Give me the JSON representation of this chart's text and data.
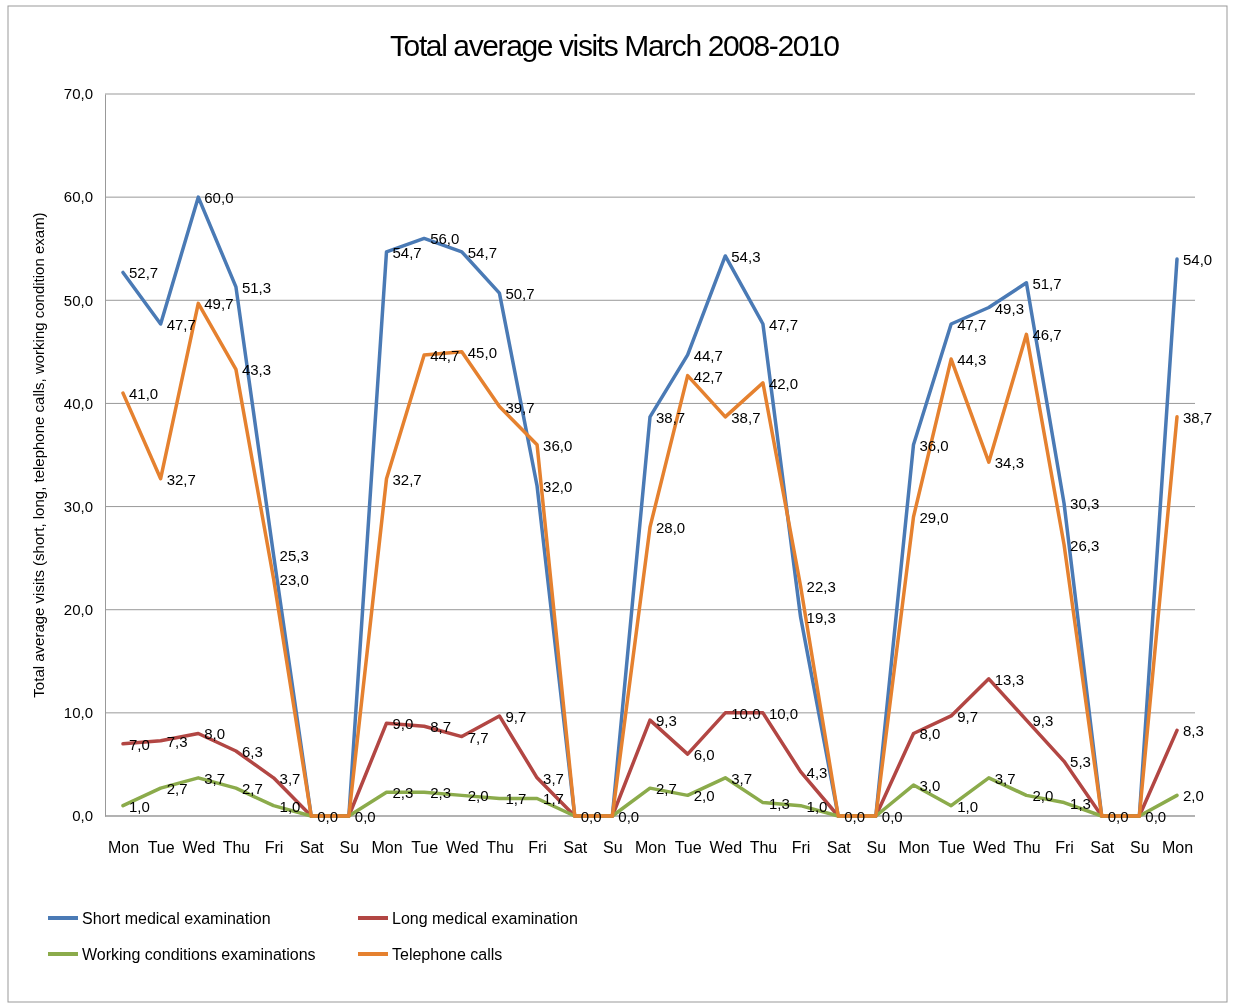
{
  "chart_data": {
    "type": "line",
    "title": "Total average visits March 2008-2010",
    "ylabel": "Total average visits (short, long, telephone calls,  working condition exam)",
    "categories": [
      "Mon",
      "Tue",
      "Wed",
      "Thu",
      "Fri",
      "Sat",
      "Su",
      "Mon",
      "Tue",
      "Wed",
      "Thu",
      "Fri",
      "Sat",
      "Su",
      "Mon",
      "Tue",
      "Wed",
      "Thu",
      "Fri",
      "Sat",
      "Su",
      "Mon",
      "Tue",
      "Wed",
      "Thu",
      "Fri",
      "Sat",
      "Su",
      "Mon"
    ],
    "ylim": [
      0,
      70
    ],
    "yticks": [
      {
        "value": 0,
        "label": "0,0"
      },
      {
        "value": 10,
        "label": "10,0"
      },
      {
        "value": 20,
        "label": "20,0"
      },
      {
        "value": 30,
        "label": "30,0"
      },
      {
        "value": 40,
        "label": "40,0"
      },
      {
        "value": 50,
        "label": "50,0"
      },
      {
        "value": 60,
        "label": "60,0"
      },
      {
        "value": 70,
        "label": "70,0"
      }
    ],
    "grid": "y",
    "legend": "bottom",
    "marker": "none",
    "line_style": "solid",
    "series": [
      {
        "name": "Short medical examination",
        "color": "#4a7ab5",
        "values": [
          52.7,
          47.7,
          60.0,
          51.3,
          25.3,
          0,
          0,
          54.7,
          56.0,
          54.7,
          50.7,
          32.0,
          0,
          0,
          38.7,
          44.7,
          54.3,
          47.7,
          19.3,
          0,
          0,
          36.0,
          47.7,
          49.3,
          51.7,
          30.3,
          0,
          0,
          54.0
        ],
        "value_labels": [
          "52,7",
          "47,7",
          "60,0",
          "51,3",
          "25,3",
          null,
          null,
          "54,7",
          "56,0",
          "54,7",
          "50,7",
          "32,0",
          null,
          null,
          "38,7",
          "44,7",
          "54,3",
          "47,7",
          "19,3",
          null,
          null,
          "36,0",
          "47,7",
          "49,3",
          "51,7",
          "30,3",
          null,
          null,
          "54,0"
        ]
      },
      {
        "name": "Long medical examination",
        "color": "#b24643",
        "values": [
          7.0,
          7.3,
          8.0,
          6.3,
          3.7,
          0,
          0,
          9.0,
          8.7,
          7.7,
          9.7,
          3.7,
          0,
          0,
          9.3,
          6.0,
          10.0,
          10.0,
          4.3,
          0,
          0,
          8.0,
          9.7,
          13.3,
          9.3,
          5.3,
          0,
          0,
          8.3
        ],
        "value_labels": [
          "7,0",
          "7,3",
          "8,0",
          "6,3",
          "3,7",
          null,
          null,
          "9,0",
          "8,7",
          "7,7",
          "9,7",
          "3,7",
          null,
          null,
          "9,3",
          "6,0",
          "10,0",
          "10,0",
          "4,3",
          null,
          null,
          "8,0",
          "9,7",
          "13,3",
          "9,3",
          "5,3",
          null,
          null,
          "8,3"
        ]
      },
      {
        "name": "Working conditions examinations",
        "color": "#8bab4b",
        "values": [
          1.0,
          2.7,
          3.7,
          2.7,
          1.0,
          0,
          0,
          2.3,
          2.3,
          2.0,
          1.7,
          1.7,
          0,
          0,
          2.7,
          2.0,
          3.7,
          1.3,
          1.0,
          0,
          0,
          3.0,
          1.0,
          3.7,
          2.0,
          1.3,
          0,
          0,
          2.0
        ],
        "value_labels": [
          "1,0",
          "2,7",
          "3,7",
          "2,7",
          "1,0",
          "0,0",
          "0,0",
          "2,3",
          "2,3",
          "2,0",
          "1,7",
          "1,7",
          "0,0",
          "0,0",
          "2,7",
          "2,0",
          "3,7",
          "1,3",
          "1,0",
          "0,0",
          "0,0",
          "3,0",
          "1,0",
          "3,7",
          "2,0",
          "1,3",
          "0,0",
          "0,0",
          "2,0"
        ]
      },
      {
        "name": "Telephone calls",
        "color": "#e5812f",
        "values": [
          41.0,
          32.7,
          49.7,
          43.3,
          23.0,
          0,
          0,
          32.7,
          44.7,
          45.0,
          39.7,
          36.0,
          0,
          0,
          28.0,
          42.7,
          38.7,
          42.0,
          22.3,
          0,
          0,
          29.0,
          44.3,
          34.3,
          46.7,
          26.3,
          0,
          0,
          38.7
        ],
        "value_labels": [
          "41,0",
          "32,7",
          "49,7",
          "43,3",
          "23,0",
          null,
          null,
          "32,7",
          "44,7",
          "45,0",
          "39,7",
          "36,0",
          null,
          null,
          "28,0",
          "42,7",
          "38,7",
          "42,0",
          "22,3",
          null,
          null,
          "29,0",
          "44,3",
          "34,3",
          "46,7",
          "26,3",
          null,
          null,
          "38,7"
        ]
      }
    ]
  }
}
